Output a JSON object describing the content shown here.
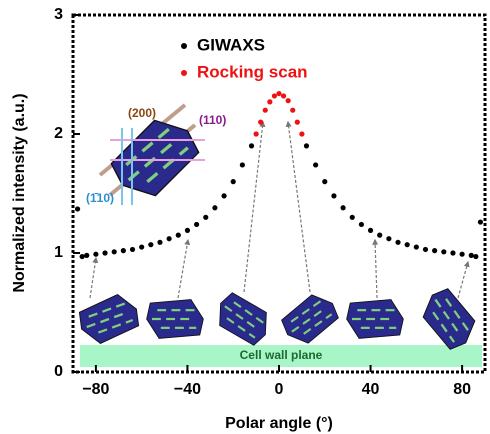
{
  "chart_data": {
    "type": "scatter",
    "xlabel": "Polar angle (°)",
    "ylabel": "Normalized intensity (a.u.)",
    "xlim": [
      -90,
      90
    ],
    "ylim": [
      0,
      3
    ],
    "xticks": [
      {
        "value": -80,
        "label": "−80"
      },
      {
        "value": -40,
        "label": "−40"
      },
      0,
      40,
      80
    ],
    "yticks": [
      0,
      1,
      2,
      3
    ],
    "legend": "top-center",
    "series": [
      {
        "name": "GIWAXS",
        "color": "#000000",
        "x": [
          -88,
          -86,
          -84,
          -80,
          -76,
          -72,
          -68,
          -64,
          -60,
          -56,
          -52,
          -48,
          -44,
          -40,
          -36,
          -32,
          -28,
          -24,
          -20,
          -16,
          -12,
          12,
          16,
          20,
          24,
          28,
          32,
          36,
          40,
          44,
          48,
          52,
          56,
          60,
          64,
          68,
          72,
          76,
          80,
          84,
          86,
          88
        ],
        "values": [
          1.37,
          0.97,
          0.98,
          0.99,
          1.0,
          1.01,
          1.02,
          1.03,
          1.05,
          1.07,
          1.09,
          1.12,
          1.15,
          1.19,
          1.24,
          1.3,
          1.38,
          1.48,
          1.6,
          1.74,
          1.9,
          1.9,
          1.74,
          1.6,
          1.48,
          1.38,
          1.3,
          1.24,
          1.19,
          1.15,
          1.12,
          1.09,
          1.07,
          1.05,
          1.03,
          1.02,
          1.01,
          1.0,
          0.99,
          0.98,
          0.97,
          1.26
        ]
      },
      {
        "name": "Rocking scan",
        "color": "#ee1111",
        "x": [
          -10,
          -8,
          -6,
          -4,
          -2,
          0,
          2,
          4,
          6,
          8,
          10
        ],
        "values": [
          2.0,
          2.1,
          2.2,
          2.27,
          2.32,
          2.34,
          2.32,
          2.28,
          2.2,
          2.1,
          2.0
        ]
      }
    ],
    "annotations": {
      "band": "Cell wall plane",
      "plane_200": "(200)",
      "plane_110": "(110)",
      "plane_1bar10": "(1̄10)"
    }
  }
}
